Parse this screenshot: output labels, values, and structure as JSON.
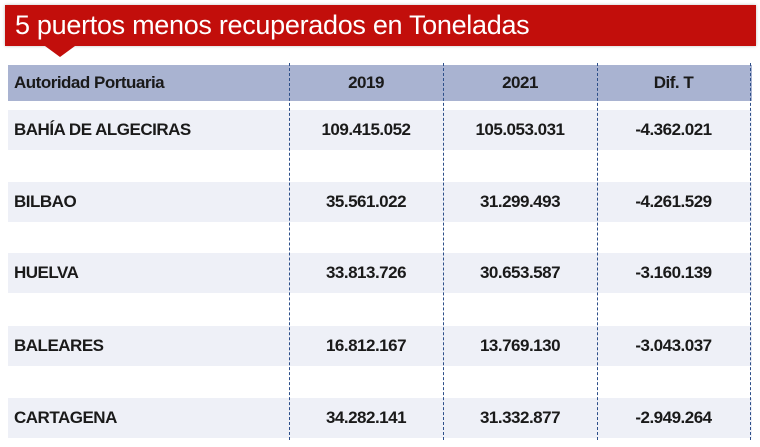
{
  "title": "5 puertos menos recuperados en Toneladas",
  "colors": {
    "banner": "#c20e0b",
    "header": "#a9b3d1",
    "row_band": "#eef0f7"
  },
  "table": {
    "headers": [
      "Autoridad Portuaria",
      "2019",
      "2021",
      "Dif. T"
    ],
    "rows": [
      [
        "BAHÍA DE ALGECIRAS",
        "109.415.052",
        "105.053.031",
        "-4.362.021"
      ],
      [
        "BILBAO",
        "35.561.022",
        "31.299.493",
        "-4.261.529"
      ],
      [
        "HUELVA",
        "33.813.726",
        "30.653.587",
        "-3.160.139"
      ],
      [
        "BALEARES",
        "16.812.167",
        "13.769.130",
        "-3.043.037"
      ],
      [
        "CARTAGENA",
        "34.282.141",
        "31.332.877",
        "-2.949.264"
      ]
    ]
  }
}
